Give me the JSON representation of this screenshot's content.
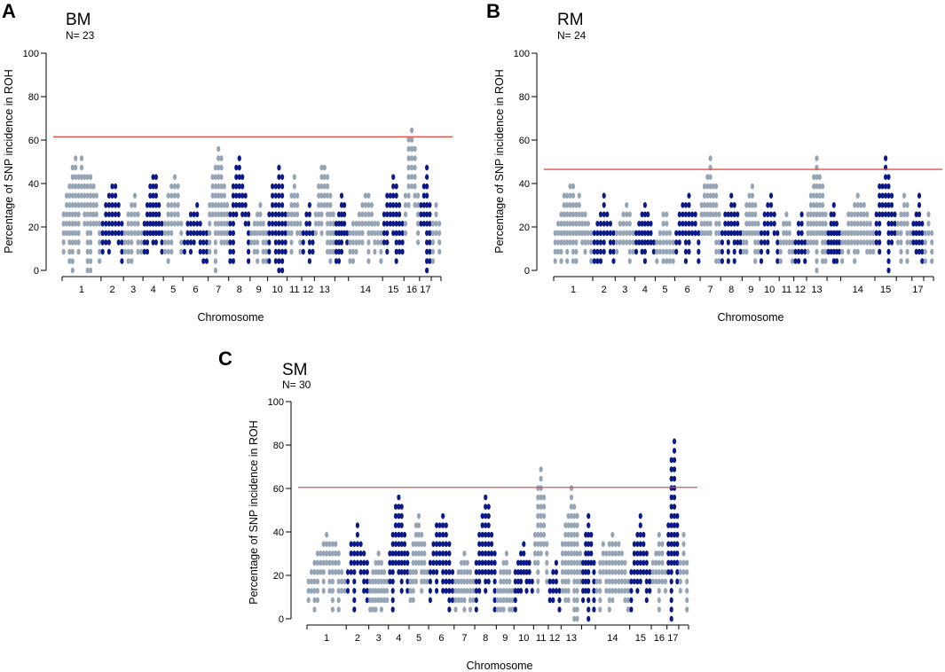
{
  "chart_data": [
    {
      "panel": "A",
      "type": "scatter",
      "title": "BM",
      "subtitle": "N= 23",
      "xlabel": "Chromosome",
      "ylabel": "Percentage of SNP incidence in ROH",
      "ylim": [
        0,
        100
      ],
      "yticks": [
        0,
        20,
        40,
        60,
        80,
        100
      ],
      "threshold": 61.5,
      "colors": {
        "odd": "#95a5b5",
        "even": "#0c1a87",
        "threshold": "#e0524a"
      },
      "chromosomes": [
        {
          "label": "1",
          "peak": 53
        },
        {
          "label": "2",
          "peak": 40
        },
        {
          "label": "3",
          "peak": 33
        },
        {
          "label": "4",
          "peak": 45
        },
        {
          "label": "5",
          "peak": 45
        },
        {
          "label": "6",
          "peak": 28
        },
        {
          "label": "7",
          "peak": 57
        },
        {
          "label": "8",
          "peak": 53
        },
        {
          "label": "9",
          "peak": 31
        },
        {
          "label": "10",
          "peak": 49
        },
        {
          "label": "11",
          "peak": 44
        },
        {
          "label": "12",
          "peak": 30
        },
        {
          "label": "13",
          "peak": 49
        },
        {
          "label": "",
          "peak": 34
        },
        {
          "label": "14",
          "peak": 35
        },
        {
          "label": "15",
          "peak": 45
        },
        {
          "label": "16",
          "peak": 66
        },
        {
          "label": "17",
          "peak": 49
        },
        {
          "label": "",
          "peak": 32
        }
      ]
    },
    {
      "panel": "B",
      "type": "scatter",
      "title": "RM",
      "subtitle": "N= 24",
      "xlabel": "Chromosome",
      "ylabel": "Percentage of SNP incidence in ROH",
      "ylim": [
        0,
        100
      ],
      "yticks": [
        0,
        20,
        40,
        60,
        80,
        100
      ],
      "threshold": 46.5,
      "colors": {
        "odd": "#95a5b5",
        "even": "#0c1a87",
        "threshold": "#e0524a"
      },
      "chromosomes": [
        {
          "label": "1",
          "peak": 39
        },
        {
          "label": "2",
          "peak": 34
        },
        {
          "label": "3",
          "peak": 30
        },
        {
          "label": "4",
          "peak": 30
        },
        {
          "label": "5",
          "peak": 25
        },
        {
          "label": "6",
          "peak": 34
        },
        {
          "label": "7",
          "peak": 51
        },
        {
          "label": "8",
          "peak": 34
        },
        {
          "label": "9",
          "peak": 38
        },
        {
          "label": "10",
          "peak": 34
        },
        {
          "label": "11",
          "peak": 25
        },
        {
          "label": "12",
          "peak": 25
        },
        {
          "label": "13",
          "peak": 51
        },
        {
          "label": "",
          "peak": 30
        },
        {
          "label": "14",
          "peak": 34
        },
        {
          "label": "15",
          "peak": 51
        },
        {
          "label": "",
          "peak": 34
        },
        {
          "label": "17",
          "peak": 34
        },
        {
          "label": "",
          "peak": 25
        }
      ]
    },
    {
      "panel": "C",
      "type": "scatter",
      "title": "SM",
      "subtitle": "N= 30",
      "xlabel": "Chromosome",
      "ylabel": "Percentage of SNP incidence in ROH",
      "ylim": [
        0,
        100
      ],
      "yticks": [
        0,
        20,
        40,
        60,
        80,
        100
      ],
      "threshold": 60.5,
      "colors": {
        "odd": "#95a5b5",
        "even": "#0c1a87",
        "threshold": "#e0524a"
      },
      "chromosomes": [
        {
          "label": "1",
          "peak": 40
        },
        {
          "label": "2",
          "peak": 44
        },
        {
          "label": "3",
          "peak": 30
        },
        {
          "label": "4",
          "peak": 57
        },
        {
          "label": "5",
          "peak": 47
        },
        {
          "label": "6",
          "peak": 47
        },
        {
          "label": "7",
          "peak": 30
        },
        {
          "label": "8",
          "peak": 54
        },
        {
          "label": "9",
          "peak": 30
        },
        {
          "label": "10",
          "peak": 34
        },
        {
          "label": "11",
          "peak": 67
        },
        {
          "label": "12",
          "peak": 24
        },
        {
          "label": "13",
          "peak": 60
        },
        {
          "label": "",
          "peak": 47
        },
        {
          "label": "14",
          "peak": 40
        },
        {
          "label": "15",
          "peak": 47
        },
        {
          "label": "16",
          "peak": 40
        },
        {
          "label": "17",
          "peak": 80
        },
        {
          "label": "",
          "peak": 40
        }
      ]
    }
  ]
}
